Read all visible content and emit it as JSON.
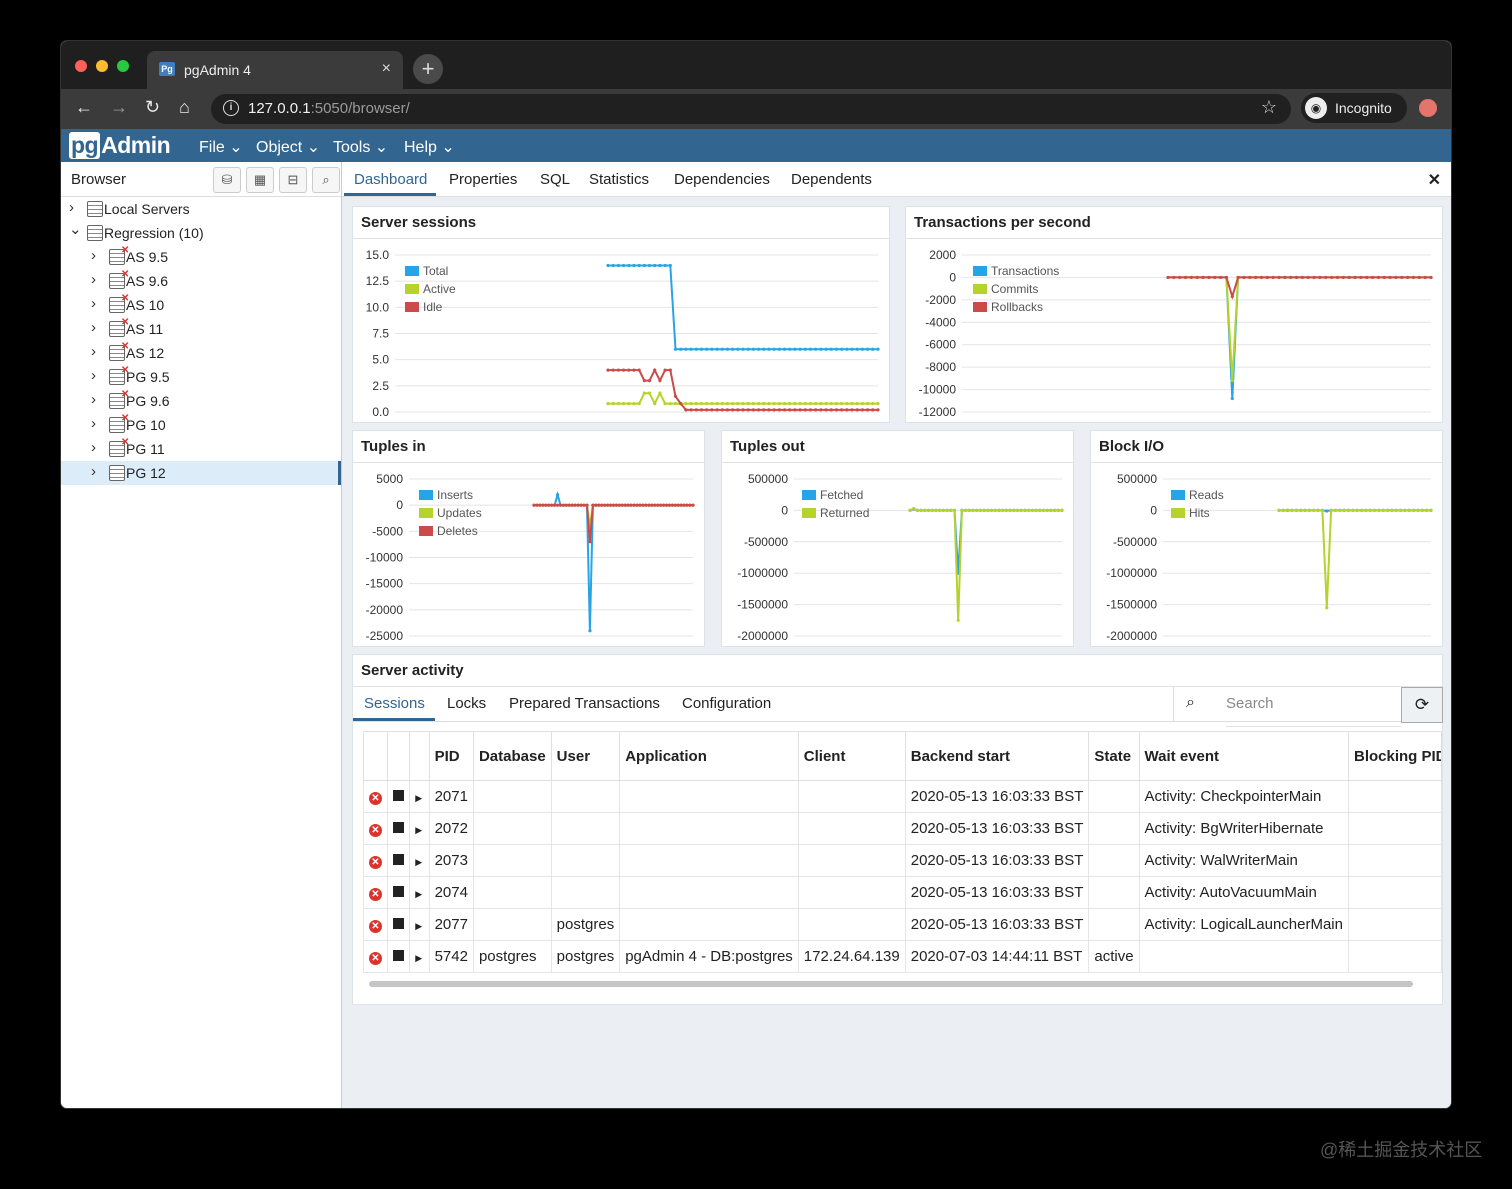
{
  "browser": {
    "tab_title": "pgAdmin 4",
    "url_host": "127.0.0.1",
    "url_rest": ":5050/browser/",
    "incognito_label": "Incognito"
  },
  "app": {
    "logo_pg": "pg",
    "logo_rest": "Admin",
    "menus": [
      "File",
      "Object",
      "Tools",
      "Help"
    ]
  },
  "left_panel": {
    "title": "Browser",
    "tree": [
      {
        "label": "Local Servers",
        "expanded": false,
        "error": false,
        "level": 0
      },
      {
        "label": "Regression (10)",
        "expanded": true,
        "error": false,
        "level": 0
      },
      {
        "label": "AS 9.5",
        "error": true,
        "level": 1
      },
      {
        "label": "AS 9.6",
        "error": true,
        "level": 1
      },
      {
        "label": "AS 10",
        "error": true,
        "level": 1
      },
      {
        "label": "AS 11",
        "error": true,
        "level": 1
      },
      {
        "label": "AS 12",
        "error": true,
        "level": 1
      },
      {
        "label": "PG 9.5",
        "error": true,
        "level": 1
      },
      {
        "label": "PG 9.6",
        "error": true,
        "level": 1
      },
      {
        "label": "PG 10",
        "error": true,
        "level": 1
      },
      {
        "label": "PG 11",
        "error": true,
        "level": 1
      },
      {
        "label": "PG 12",
        "error": false,
        "level": 1,
        "selected": true
      }
    ]
  },
  "main_tabs": [
    "Dashboard",
    "Properties",
    "SQL",
    "Statistics",
    "Dependencies",
    "Dependents"
  ],
  "colors": {
    "blue": "#27a4e6",
    "green": "#b5d32a",
    "red": "#cc4a4a",
    "accent": "#326690"
  },
  "charts": {
    "sessions": {
      "title": "Server sessions"
    },
    "tps": {
      "title": "Transactions per second"
    },
    "tuples_in": {
      "title": "Tuples in"
    },
    "tuples_out": {
      "title": "Tuples out"
    },
    "block_io": {
      "title": "Block I/O"
    }
  },
  "chart_data": [
    {
      "type": "line",
      "title": "Server sessions",
      "ylim": [
        0,
        15
      ],
      "yticks": [
        "15.0",
        "12.5",
        "10.0",
        "7.5",
        "5.0",
        "2.5",
        "0.0"
      ],
      "series": [
        {
          "name": "Total",
          "color": "#27a4e6",
          "values": [
            14,
            14,
            14,
            14,
            14,
            14,
            14,
            14,
            14,
            14,
            14,
            14,
            14,
            6,
            6,
            6,
            6,
            6,
            6,
            6,
            6,
            6,
            6,
            6,
            6,
            6,
            6,
            6,
            6,
            6,
            6,
            6,
            6,
            6,
            6,
            6,
            6,
            6,
            6,
            6,
            6,
            6,
            6,
            6,
            6,
            6,
            6,
            6,
            6,
            6,
            6,
            6,
            6
          ]
        },
        {
          "name": "Active",
          "color": "#b5d32a",
          "values": [
            0.8,
            0.8,
            0.8,
            0.8,
            0.8,
            0.8,
            0.8,
            1.8,
            1.8,
            0.8,
            1.8,
            0.8,
            0.8,
            0.8,
            0.8,
            0.8,
            0.8,
            0.8,
            0.8,
            0.8,
            0.8,
            0.8,
            0.8,
            0.8,
            0.8,
            0.8,
            0.8,
            0.8,
            0.8,
            0.8,
            0.8,
            0.8,
            0.8,
            0.8,
            0.8,
            0.8,
            0.8,
            0.8,
            0.8,
            0.8,
            0.8,
            0.8,
            0.8,
            0.8,
            0.8,
            0.8,
            0.8,
            0.8,
            0.8,
            0.8,
            0.8,
            0.8,
            0.8
          ]
        },
        {
          "name": "Idle",
          "color": "#cc4a4a",
          "values": [
            4,
            4,
            4,
            4,
            4,
            4,
            4,
            3,
            3,
            4,
            3,
            4,
            4,
            1.5,
            0.8,
            0.2,
            0.2,
            0.2,
            0.2,
            0.2,
            0.2,
            0.2,
            0.2,
            0.2,
            0.2,
            0.2,
            0.2,
            0.2,
            0.2,
            0.2,
            0.2,
            0.2,
            0.2,
            0.2,
            0.2,
            0.2,
            0.2,
            0.2,
            0.2,
            0.2,
            0.2,
            0.2,
            0.2,
            0.2,
            0.2,
            0.2,
            0.2,
            0.2,
            0.2,
            0.2,
            0.2,
            0.2,
            0.2
          ]
        }
      ]
    },
    {
      "type": "line",
      "title": "Transactions per second",
      "ylim": [
        -12000,
        2000
      ],
      "yticks": [
        "2000",
        "0",
        "-2000",
        "-4000",
        "-6000",
        "-8000",
        "-10000",
        "-12000"
      ],
      "series": [
        {
          "name": "Transactions",
          "color": "#27a4e6",
          "values": [
            0,
            0,
            0,
            0,
            0,
            0,
            0,
            0,
            0,
            0,
            0,
            -10800,
            0,
            0,
            0,
            0,
            0,
            0,
            0,
            0,
            0,
            0,
            0,
            0,
            0,
            0,
            0,
            0,
            0,
            0,
            0,
            0,
            0,
            0,
            0,
            0,
            0,
            0,
            0,
            0,
            0,
            0,
            0,
            0,
            0,
            0
          ]
        },
        {
          "name": "Commits",
          "color": "#b5d32a",
          "values": [
            0,
            0,
            0,
            0,
            0,
            0,
            0,
            0,
            0,
            0,
            0,
            -9200,
            0,
            0,
            0,
            0,
            0,
            0,
            0,
            0,
            0,
            0,
            0,
            0,
            0,
            0,
            0,
            0,
            0,
            0,
            0,
            0,
            0,
            0,
            0,
            0,
            0,
            0,
            0,
            0,
            0,
            0,
            0,
            0,
            0,
            0
          ]
        },
        {
          "name": "Rollbacks",
          "color": "#cc4a4a",
          "values": [
            0,
            0,
            0,
            0,
            0,
            0,
            0,
            0,
            0,
            0,
            0,
            -1700,
            0,
            0,
            0,
            0,
            0,
            0,
            0,
            0,
            0,
            0,
            0,
            0,
            0,
            0,
            0,
            0,
            0,
            0,
            0,
            0,
            0,
            0,
            0,
            0,
            0,
            0,
            0,
            0,
            0,
            0,
            0,
            0,
            0,
            0
          ]
        }
      ]
    },
    {
      "type": "line",
      "title": "Tuples in",
      "ylim": [
        -25000,
        5000
      ],
      "yticks": [
        "5000",
        "0",
        "-5000",
        "-10000",
        "-15000",
        "-20000",
        "-25000"
      ],
      "series": [
        {
          "name": "Inserts",
          "color": "#27a4e6",
          "values": [
            0,
            0,
            0,
            0,
            0,
            0,
            0,
            0,
            2000,
            0,
            0,
            0,
            0,
            0,
            0,
            0,
            0,
            0,
            0,
            -24000,
            0,
            0,
            0,
            0,
            0,
            0,
            0,
            0,
            0,
            0,
            0,
            0,
            0,
            0,
            0,
            0,
            0,
            0,
            0,
            0,
            0,
            0,
            0,
            0,
            0,
            0,
            0,
            0,
            0,
            0,
            0,
            0,
            0,
            0,
            0
          ]
        },
        {
          "name": "Updates",
          "color": "#b5d32a",
          "values": [
            0,
            0,
            0,
            0,
            0,
            0,
            0,
            0,
            0,
            0,
            0,
            0,
            0,
            0,
            0,
            0,
            0,
            0,
            0,
            -4000,
            0,
            0,
            0,
            0,
            0,
            0,
            0,
            0,
            0,
            0,
            0,
            0,
            0,
            0,
            0,
            0,
            0,
            0,
            0,
            0,
            0,
            0,
            0,
            0,
            0,
            0,
            0,
            0,
            0,
            0,
            0,
            0,
            0,
            0,
            0
          ]
        },
        {
          "name": "Deletes",
          "color": "#cc4a4a",
          "values": [
            0,
            0,
            0,
            0,
            0,
            0,
            0,
            0,
            0,
            0,
            0,
            0,
            0,
            0,
            0,
            0,
            0,
            0,
            0,
            -7000,
            0,
            0,
            0,
            0,
            0,
            0,
            0,
            0,
            0,
            0,
            0,
            0,
            0,
            0,
            0,
            0,
            0,
            0,
            0,
            0,
            0,
            0,
            0,
            0,
            0,
            0,
            0,
            0,
            0,
            0,
            0,
            0,
            0,
            0,
            0
          ]
        }
      ]
    },
    {
      "type": "line",
      "title": "Tuples out",
      "ylim": [
        -2000000,
        500000
      ],
      "yticks": [
        "500000",
        "0",
        "-500000",
        "-1000000",
        "-1500000",
        "-2000000"
      ],
      "series": [
        {
          "name": "Fetched",
          "color": "#27a4e6",
          "values": [
            0,
            20000,
            0,
            0,
            0,
            0,
            0,
            0,
            0,
            0,
            0,
            0,
            0,
            -1000000,
            0,
            0,
            0,
            0,
            0,
            0,
            0,
            0,
            0,
            0,
            0,
            0,
            0,
            0,
            0,
            0,
            0,
            0,
            0,
            0,
            0,
            0,
            0,
            0,
            0,
            0,
            0,
            0
          ]
        },
        {
          "name": "Returned",
          "color": "#b5d32a",
          "values": [
            0,
            30000,
            0,
            0,
            0,
            0,
            0,
            0,
            0,
            0,
            0,
            0,
            0,
            -1750000,
            0,
            0,
            0,
            0,
            0,
            0,
            0,
            0,
            0,
            0,
            0,
            0,
            0,
            0,
            0,
            0,
            0,
            0,
            0,
            0,
            0,
            0,
            0,
            0,
            0,
            0,
            0,
            0
          ]
        }
      ]
    },
    {
      "type": "line",
      "title": "Block I/O",
      "ylim": [
        -2000000,
        500000
      ],
      "yticks": [
        "500000",
        "0",
        "-500000",
        "-1000000",
        "-1500000",
        "-2000000"
      ],
      "series": [
        {
          "name": "Reads",
          "color": "#27a4e6",
          "values": [
            0,
            0,
            0,
            0,
            0,
            0,
            0,
            0,
            0,
            0,
            0,
            -10000,
            0,
            0,
            0,
            0,
            0,
            0,
            0,
            0,
            0,
            0,
            0,
            0,
            0,
            0,
            0,
            0,
            0,
            0,
            0,
            0,
            0,
            0,
            0,
            0
          ]
        },
        {
          "name": "Hits",
          "color": "#b5d32a",
          "values": [
            0,
            0,
            5000,
            0,
            0,
            0,
            0,
            0,
            0,
            0,
            0,
            -1550000,
            0,
            0,
            0,
            0,
            0,
            0,
            0,
            0,
            0,
            0,
            0,
            0,
            0,
            0,
            0,
            0,
            0,
            0,
            0,
            0,
            0,
            0,
            0,
            0
          ]
        }
      ]
    }
  ],
  "server_activity": {
    "title": "Server activity",
    "tabs": [
      "Sessions",
      "Locks",
      "Prepared Transactions",
      "Configuration"
    ],
    "search_placeholder": "Search",
    "columns": [
      "PID",
      "Database",
      "User",
      "Application",
      "Client",
      "Backend start",
      "State",
      "Wait event",
      "Blocking PIDs"
    ],
    "rows": [
      [
        "2071",
        "",
        "",
        "",
        "",
        "2020-05-13 16:03:33 BST",
        "",
        "Activity: CheckpointerMain",
        ""
      ],
      [
        "2072",
        "",
        "",
        "",
        "",
        "2020-05-13 16:03:33 BST",
        "",
        "Activity: BgWriterHibernate",
        ""
      ],
      [
        "2073",
        "",
        "",
        "",
        "",
        "2020-05-13 16:03:33 BST",
        "",
        "Activity: WalWriterMain",
        ""
      ],
      [
        "2074",
        "",
        "",
        "",
        "",
        "2020-05-13 16:03:33 BST",
        "",
        "Activity: AutoVacuumMain",
        ""
      ],
      [
        "2077",
        "",
        "postgres",
        "",
        "",
        "2020-05-13 16:03:33 BST",
        "",
        "Activity: LogicalLauncherMain",
        ""
      ],
      [
        "5742",
        "postgres",
        "postgres",
        "pgAdmin 4 - DB:postgres",
        "172.24.64.139",
        "2020-07-03 14:44:11 BST",
        "active",
        "",
        ""
      ]
    ]
  },
  "watermark": "@稀土掘金技术社区"
}
